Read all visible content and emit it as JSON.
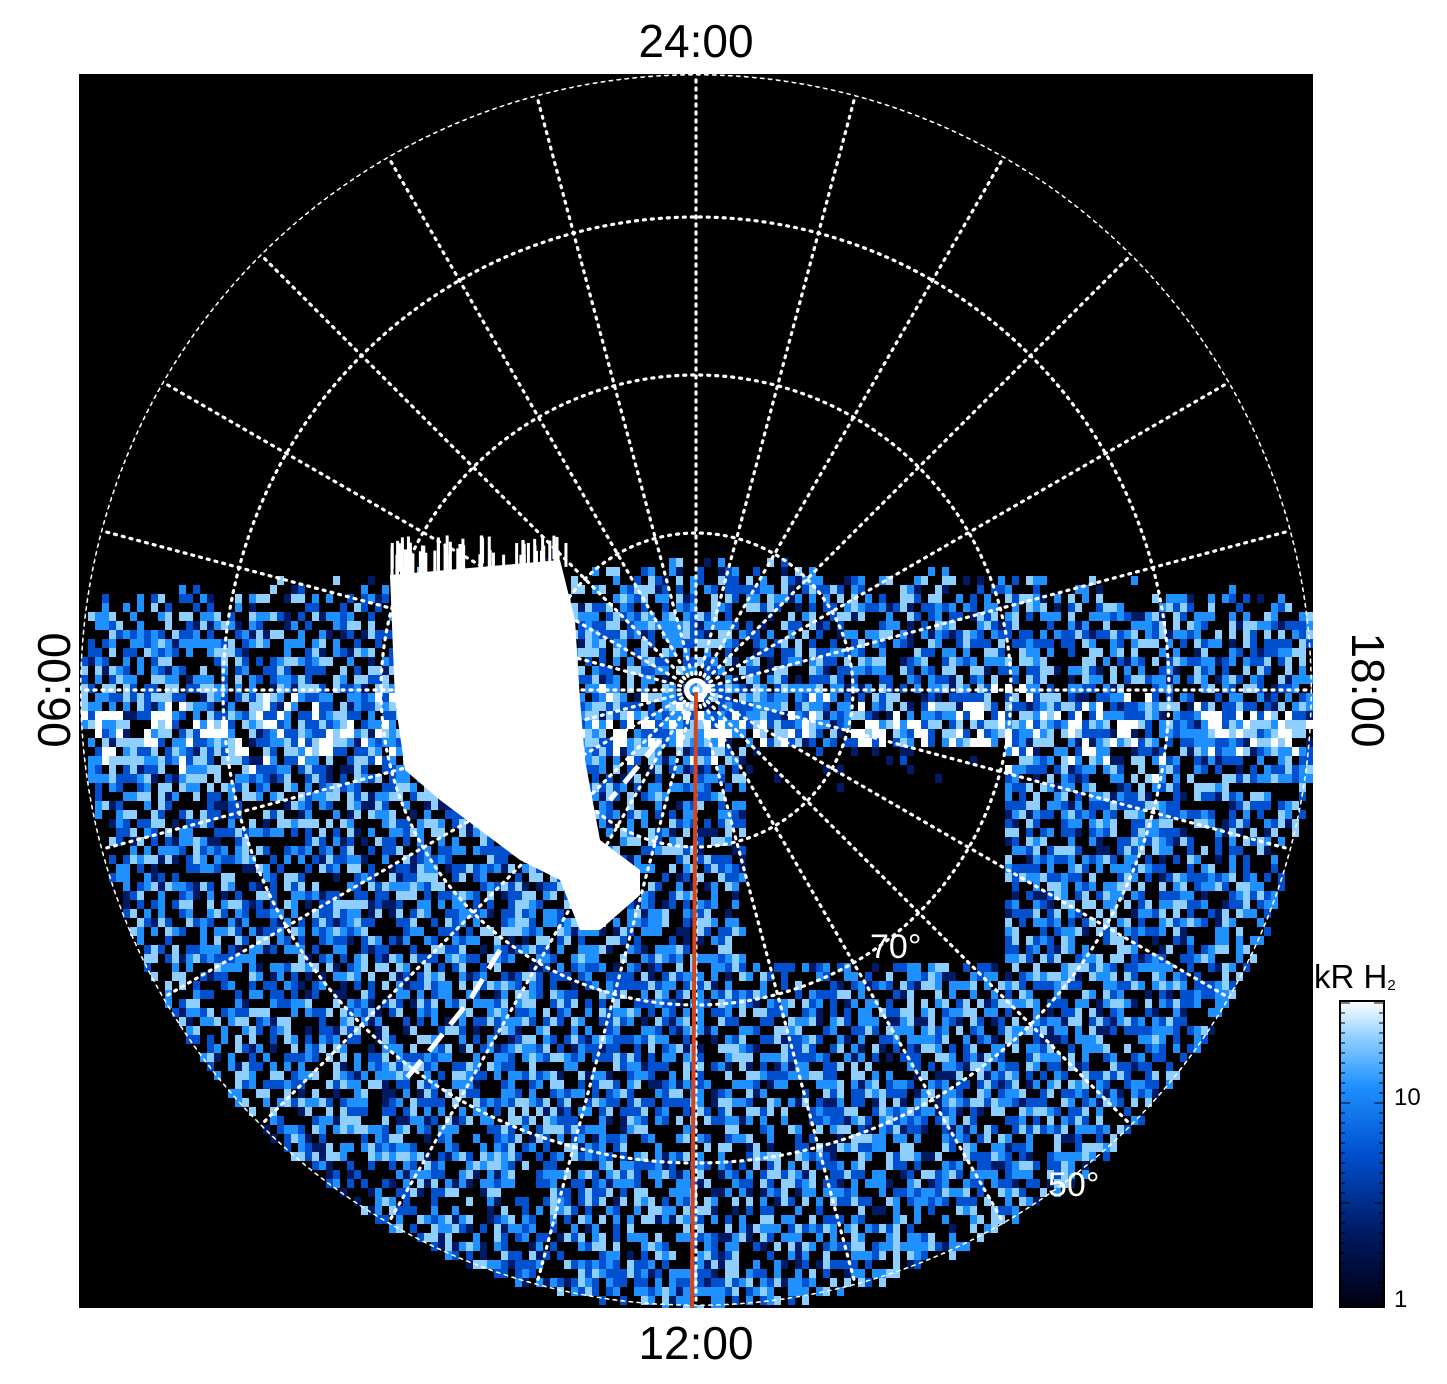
{
  "image": {
    "description_kind": "polar projection of ultraviolet auroral emission",
    "local_time_labels": {
      "top": "24:00",
      "bottom": "12:00",
      "left": "06:00",
      "right": "18:00"
    },
    "latitude_labels": {
      "inner": "70°",
      "outer": "50°"
    },
    "colorbar": {
      "title_main": "kR H",
      "title_sub": "2",
      "tick_labels": [
        "10",
        "1"
      ],
      "scale": "log",
      "colors": [
        "#000010",
        "#001a66",
        "#0050d0",
        "#1e90ff",
        "#8fcfff",
        "#ffffff"
      ]
    },
    "colors": {
      "background": "#000000",
      "grid": "#ffffff",
      "meridian_line": "#d2451e"
    }
  }
}
